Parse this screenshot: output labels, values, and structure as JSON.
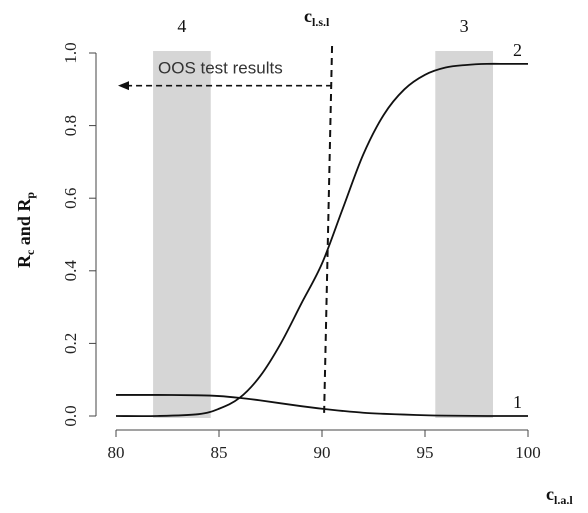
{
  "chart_data": {
    "type": "line",
    "xlabel": {
      "main": "c",
      "sub": "l.a.l"
    },
    "ylabel": {
      "main1": "R",
      "sub1": "c",
      "mid": " and ",
      "main2": "R",
      "sub2": "p"
    },
    "xlim": [
      80,
      100
    ],
    "ylim": [
      0,
      1
    ],
    "x_ticks": [
      80,
      85,
      90,
      95,
      100
    ],
    "y_ticks": [
      "0.0",
      "0.2",
      "0.4",
      "0.6",
      "0.8",
      "1.0"
    ],
    "series": [
      {
        "name": "1",
        "x": [
          80,
          82,
          84,
          85,
          86,
          87,
          88,
          89,
          90,
          91,
          92,
          93,
          94,
          95,
          96,
          98,
          100
        ],
        "y": [
          0.058,
          0.058,
          0.057,
          0.055,
          0.05,
          0.043,
          0.035,
          0.027,
          0.02,
          0.014,
          0.009,
          0.006,
          0.004,
          0.002,
          0.001,
          0.0,
          0.0
        ]
      },
      {
        "name": "2",
        "x": [
          80,
          82,
          84,
          85,
          86,
          87,
          88,
          89,
          90,
          91,
          92,
          93,
          94,
          95,
          96,
          97,
          98,
          99,
          100
        ],
        "y": [
          0.0,
          0.0,
          0.005,
          0.02,
          0.05,
          0.11,
          0.2,
          0.31,
          0.42,
          0.57,
          0.72,
          0.83,
          0.9,
          0.94,
          0.96,
          0.967,
          0.97,
          0.97,
          0.97
        ]
      }
    ],
    "bands": [
      {
        "label": "4",
        "x0": 81.8,
        "x1": 84.6
      },
      {
        "label": "3",
        "x0": 95.5,
        "x1": 98.3
      }
    ],
    "vline": {
      "x": 90.1,
      "label": {
        "main": "c",
        "sub": "l.s.l"
      }
    },
    "annotation": {
      "text": "OOS test results",
      "y": 0.91,
      "x_from": 90.1,
      "x_to": 80
    },
    "grid": false,
    "colors": {
      "line": "#111111",
      "band": "#d6d6d6",
      "annotation": "#333333"
    }
  }
}
